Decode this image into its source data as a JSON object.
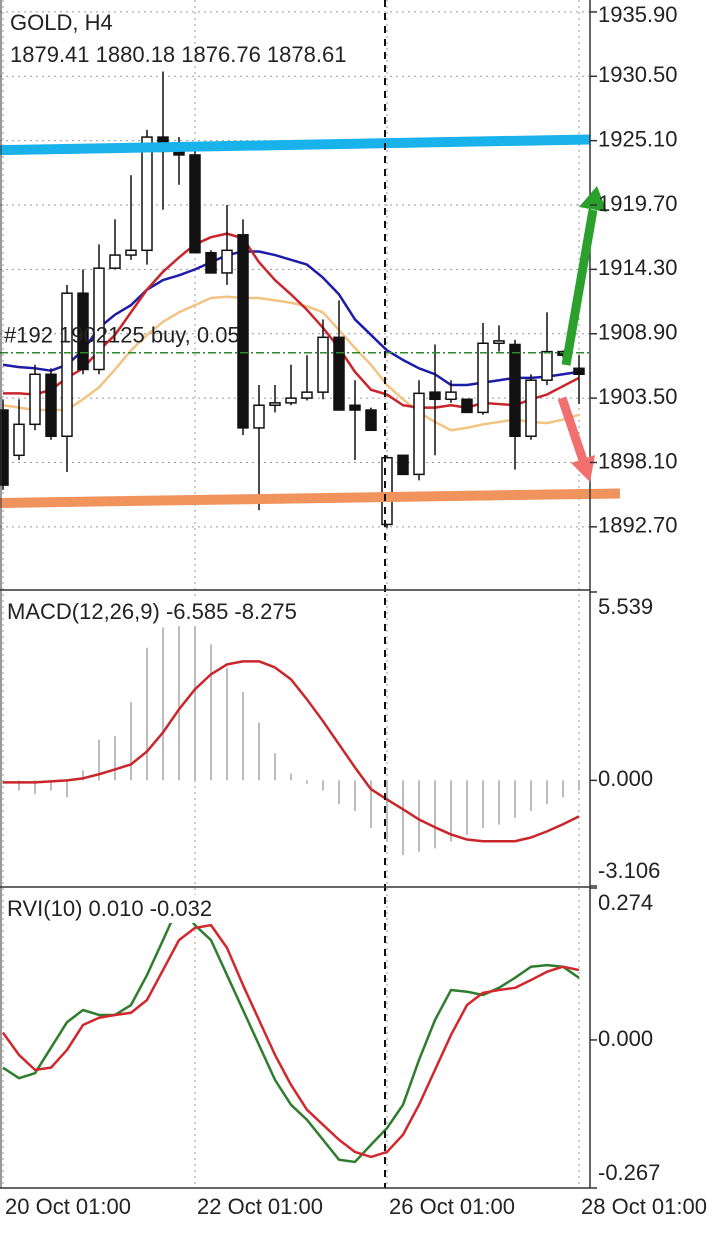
{
  "chart_data": [
    {
      "type": "candlestick",
      "title": "GOLD, H4",
      "subtitle": "1879.41 1880.18 1876.76 1878.61",
      "categories": [
        "20 Oct 01:00",
        null,
        null,
        null,
        null,
        null,
        null,
        null,
        null,
        null,
        null,
        null,
        "22 Oct 01:00",
        null,
        null,
        null,
        null,
        null,
        null,
        null,
        null,
        null,
        null,
        null,
        "26 Oct 01:00",
        null,
        null,
        null,
        null,
        null,
        null,
        null,
        null,
        null,
        null,
        null,
        "28 Oct 01:00"
      ],
      "open": [
        1902.5,
        1898.7,
        1901.3,
        1905.5,
        1900.3,
        1912.3,
        1905.9,
        1914.4,
        1915.5,
        1915.9,
        1925.4,
        1924.2,
        1923.9,
        1915.7,
        1914.0,
        1917.2,
        1901.0,
        1902.9,
        1903.1,
        1903.5,
        1904.0,
        1908.6,
        1902.9,
        1902.5,
        1892.9,
        1898.7,
        1897.1,
        1904.0,
        1903.4,
        1903.4,
        1902.3,
        1908.1,
        1908.0,
        1900.3,
        1905.0,
        1907.4,
        1906.0
      ],
      "high": [
        1903.4,
        1903.4,
        1906.3,
        1906.0,
        1913.0,
        1914.3,
        1916.4,
        1918.5,
        1922.2,
        1926.0,
        1930.9,
        1925.4,
        1924.2,
        1915.9,
        1919.7,
        1918.5,
        1904.6,
        1904.6,
        1906.3,
        1907.1,
        1910.1,
        1911.7,
        1905.0,
        1902.7,
        1898.7,
        1898.7,
        1905.0,
        1908.0,
        1905.0,
        1903.4,
        1909.8,
        1909.6,
        1908.4,
        1905.5,
        1910.7,
        1907.5,
        1907.1
      ],
      "low": [
        1895.8,
        1898.3,
        1900.8,
        1900.0,
        1897.3,
        1905.5,
        1905.5,
        1914.3,
        1915.1,
        1914.7,
        1919.3,
        1921.4,
        1915.7,
        1914.0,
        1913.0,
        1900.4,
        1894.1,
        1902.3,
        1902.9,
        1903.3,
        1903.4,
        1902.5,
        1898.3,
        1900.8,
        1892.6,
        1897.1,
        1896.6,
        1898.7,
        1903.1,
        1902.3,
        1902.1,
        1907.4,
        1897.5,
        1900.0,
        1904.6,
        1906.9,
        1903.0
      ],
      "close": [
        1896.2,
        1901.3,
        1905.5,
        1900.3,
        1912.3,
        1905.9,
        1914.4,
        1915.5,
        1915.9,
        1925.4,
        1924.2,
        1923.9,
        1915.7,
        1914.0,
        1915.9,
        1901.0,
        1902.9,
        1903.1,
        1903.5,
        1904.0,
        1908.6,
        1902.5,
        1902.5,
        1900.8,
        1898.5,
        1897.1,
        1903.9,
        1903.4,
        1904.0,
        1902.3,
        1908.1,
        1908.3,
        1900.3,
        1905.0,
        1907.4,
        1907.1,
        1905.5
      ],
      "series": [
        {
          "color": "#f2c382",
          "values": [
            1902.9,
            1902.7,
            1902.5,
            1902.5,
            1902.5,
            1903.4,
            1904.4,
            1905.9,
            1907.5,
            1908.8,
            1909.9,
            1910.7,
            1911.3,
            1911.9,
            1912.0,
            1911.9,
            1911.9,
            1911.7,
            1911.5,
            1911.2,
            1910.7,
            1909.2,
            1907.7,
            1906.3,
            1904.6,
            1903.4,
            1902.3,
            1901.5,
            1900.8,
            1901.0,
            1901.3,
            1901.5,
            1901.7,
            1901.5,
            1901.4,
            1901.7,
            1902.1
          ]
        },
        {
          "color": "#1c1ca8",
          "values": [
            1906.3,
            1906.1,
            1906.0,
            1905.8,
            1906.3,
            1907.5,
            1909.4,
            1910.5,
            1911.3,
            1912.6,
            1913.4,
            1913.8,
            1914.3,
            1914.9,
            1915.5,
            1915.8,
            1915.8,
            1915.5,
            1915.1,
            1914.7,
            1913.6,
            1912.2,
            1910.1,
            1908.8,
            1907.5,
            1906.7,
            1906.0,
            1905.5,
            1904.6,
            1904.6,
            1904.8,
            1905.0,
            1905.2,
            1905.2,
            1905.3,
            1905.5,
            1905.7
          ]
        },
        {
          "color": "#c8262a",
          "values": [
            1903.9,
            1903.9,
            1903.8,
            1904.2,
            1905.2,
            1906.0,
            1907.5,
            1908.8,
            1910.7,
            1912.6,
            1914.1,
            1915.3,
            1916.4,
            1917.0,
            1917.3,
            1916.9,
            1914.9,
            1913.4,
            1912.2,
            1910.9,
            1909.4,
            1907.7,
            1905.7,
            1904.2,
            1903.8,
            1902.9,
            1902.7,
            1902.7,
            1902.9,
            1902.7,
            1903.1,
            1903.0,
            1902.9,
            1903.4,
            1903.8,
            1904.5,
            1905.2
          ]
        }
      ],
      "trend_lines": [
        {
          "color": "#19b2ea",
          "values": [
            1924.3,
            1925.2
          ]
        },
        {
          "color": "#f0935c",
          "values": [
            1894.7,
            1895.5
          ]
        }
      ],
      "trade_line": {
        "label": "#192 1902125 buy, 0.05",
        "value": 1907.3,
        "color": "#2b8a2b"
      },
      "ylim": [
        1887.4,
        1936.9
      ],
      "yticks": [
        {
          "value": 1935.9,
          "label": "1935.90"
        },
        {
          "value": 1930.5,
          "label": "1930.50"
        },
        {
          "value": 1925.1,
          "label": "1925.10"
        },
        {
          "value": 1919.7,
          "label": "1919.70"
        },
        {
          "value": 1914.3,
          "label": "1914.30"
        },
        {
          "value": 1908.9,
          "label": "1908.90"
        },
        {
          "value": 1903.5,
          "label": "1903.50"
        },
        {
          "value": 1898.1,
          "label": "1898.10"
        },
        {
          "value": 1892.7,
          "label": "1892.70"
        }
      ],
      "grid": true
    },
    {
      "type": "bar",
      "title": "MACD(12,26,9) -6.585 -8.275",
      "color": "#bdbdbd",
      "values": [
        -0.1,
        -0.3,
        -0.4,
        -0.3,
        -0.5,
        0.3,
        1.2,
        1.3,
        2.3,
        3.9,
        4.5,
        4.6,
        4.6,
        4.0,
        3.3,
        2.6,
        1.7,
        0.8,
        0.2,
        -0.1,
        -0.3,
        -0.7,
        -0.9,
        -1.4,
        -1.8,
        -2.2,
        -2.1,
        -2.0,
        -1.8,
        -1.6,
        -1.4,
        -1.3,
        -1.1,
        -0.9,
        -0.7,
        -0.5,
        -0.3
      ],
      "series": [
        {
          "color": "#c8262a",
          "values": [
            -0.06,
            -0.06,
            -0.06,
            -0.03,
            0,
            0.06,
            0.18,
            0.32,
            0.47,
            0.85,
            1.41,
            2.09,
            2.68,
            3.12,
            3.41,
            3.5,
            3.5,
            3.32,
            2.97,
            2.38,
            1.74,
            1.06,
            0.38,
            -0.26,
            -0.56,
            -0.85,
            -1.15,
            -1.38,
            -1.59,
            -1.74,
            -1.79,
            -1.79,
            -1.79,
            -1.68,
            -1.5,
            -1.29,
            -1.06
          ]
        }
      ],
      "ylim": [
        -3.106,
        5.539
      ],
      "yticks": [
        5.539,
        {
          "value": 0,
          "label": "0.000"
        },
        -3.106
      ]
    },
    {
      "type": "line",
      "title": "RVI(10) 0.010 -0.032",
      "series": [
        {
          "color": "#2e7d2e",
          "values": [
            -0.05,
            -0.069,
            -0.06,
            -0.014,
            0.032,
            0.054,
            0.045,
            0.045,
            0.063,
            0.117,
            0.18,
            0.244,
            0.207,
            0.18,
            0.117,
            0.054,
            -0.009,
            -0.072,
            -0.117,
            -0.144,
            -0.18,
            -0.216,
            -0.22,
            -0.189,
            -0.159,
            -0.117,
            -0.036,
            0.036,
            0.09,
            0.087,
            0.081,
            0.094,
            0.112,
            0.132,
            0.135,
            0.132,
            0.112
          ]
        },
        {
          "color": "#d0282c",
          "values": [
            0.013,
            -0.027,
            -0.054,
            -0.05,
            -0.018,
            0.027,
            0.04,
            0.045,
            0.049,
            0.072,
            0.126,
            0.18,
            0.202,
            0.207,
            0.166,
            0.099,
            0.036,
            -0.027,
            -0.081,
            -0.126,
            -0.153,
            -0.18,
            -0.202,
            -0.211,
            -0.202,
            -0.171,
            -0.117,
            -0.054,
            0.009,
            0.063,
            0.085,
            0.09,
            0.094,
            0.108,
            0.123,
            0.132,
            0.126
          ]
        }
      ],
      "ylim": [
        -0.267,
        0.274
      ],
      "yticks": [
        0.274,
        {
          "value": 0,
          "label": "0.000"
        },
        -0.267
      ]
    }
  ]
}
